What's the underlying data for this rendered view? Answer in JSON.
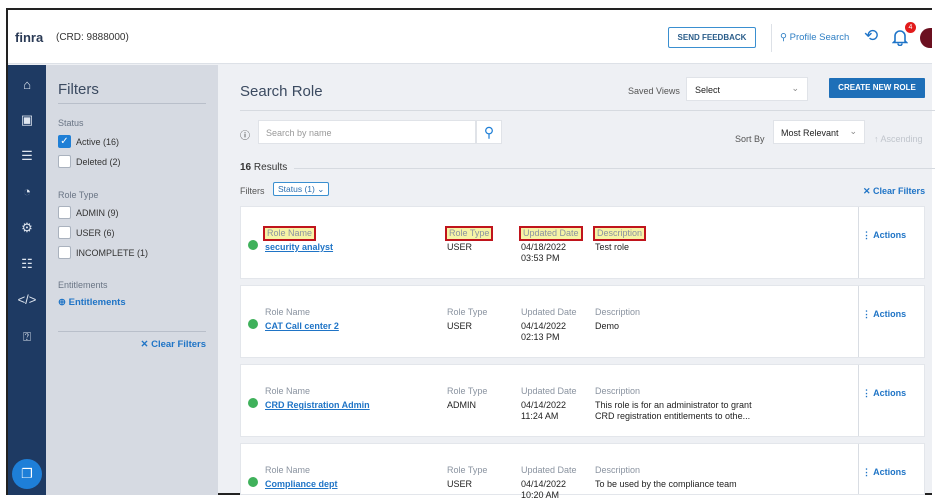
{
  "header": {
    "logo": "FINRA",
    "crd": "(CRD: 9888000)",
    "send_feedback": "SEND FEEDBACK",
    "profile_search": "Profile Search",
    "notification_count": "4"
  },
  "nav": {
    "icons": [
      "home-icon",
      "id-card-icon",
      "checklist-icon",
      "pie-chart-icon",
      "user-settings-icon",
      "group-icon",
      "code-icon",
      "help-icon"
    ]
  },
  "filters": {
    "title": "Filters",
    "status_label": "Status",
    "status": [
      {
        "label": "Active (16)",
        "checked": true
      },
      {
        "label": "Deleted (2)",
        "checked": false
      }
    ],
    "role_type_label": "Role Type",
    "role_types": [
      {
        "label": "ADMIN (9)",
        "checked": false
      },
      {
        "label": "USER (6)",
        "checked": false
      },
      {
        "label": "INCOMPLETE (1)",
        "checked": false
      }
    ],
    "entitlements_label": "Entitlements",
    "entitlements_link": "Entitlements",
    "clear": "Clear Filters"
  },
  "main": {
    "title": "Search Role",
    "saved_views_label": "Saved Views",
    "saved_views_value": "Select",
    "create_button": "CREATE NEW ROLE",
    "search_placeholder": "Search by name",
    "sort_by_label": "Sort By",
    "sort_value": "Most Relevant",
    "ascending": "Ascending",
    "results_count": "16",
    "results_label": "Results",
    "filters_label": "Filters",
    "filter_chip": "Status (1)",
    "clear_filters": "Clear Filters",
    "col_labels": {
      "name": "Role Name",
      "type": "Role Type",
      "date": "Updated Date",
      "desc": "Description"
    },
    "actions_label": "Actions",
    "rows": [
      {
        "name": "security analyst",
        "type": "USER",
        "date": "04/18/2022",
        "time": "03:53 PM",
        "desc": "Test role",
        "desc2": "",
        "highlighted": true
      },
      {
        "name": "CAT Call center 2",
        "type": "USER",
        "date": "04/14/2022",
        "time": "02:13 PM",
        "desc": "Demo",
        "desc2": ""
      },
      {
        "name": "CRD Registration Admin",
        "type": "ADMIN",
        "date": "04/14/2022",
        "time": "11:24 AM",
        "desc": "This role is for an administrator to grant",
        "desc2": "CRD registration entitlements to othe..."
      },
      {
        "name": "Compliance dept",
        "type": "USER",
        "date": "04/14/2022",
        "time": "10:20 AM",
        "desc": "To be used by the compliance team",
        "desc2": ""
      }
    ]
  },
  "colors": {
    "nav": "#1e3a63",
    "accent": "#1e6fb8",
    "active_dot": "#3fb15b",
    "highlight_border": "#c0141c",
    "highlight_fill": "#f6f4a6"
  }
}
